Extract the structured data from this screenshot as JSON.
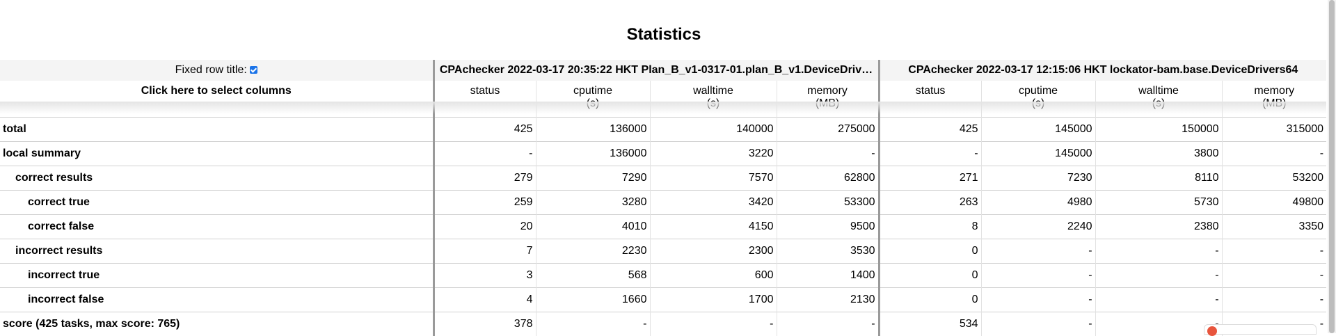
{
  "page": {
    "title": "Statistics"
  },
  "header": {
    "fixed_row_title_label": "Fixed row title:",
    "select_columns_label": "Click here to select columns",
    "runs": [
      "CPAchecker 2022-03-17 20:35:22 HKT Plan_B_v1-0317-01.plan_B_v1.DeviceDriv…",
      "CPAchecker 2022-03-17 12:15:06 HKT lockator-bam.base.DeviceDrivers64"
    ],
    "columns": [
      {
        "name": "status",
        "unit": ""
      },
      {
        "name": "cputime",
        "unit": "(s)"
      },
      {
        "name": "walltime",
        "unit": "(s)"
      },
      {
        "name": "memory",
        "unit": "(MB)"
      },
      {
        "name": "status",
        "unit": ""
      },
      {
        "name": "cputime",
        "unit": "(s)"
      },
      {
        "name": "walltime",
        "unit": "(s)"
      },
      {
        "name": "memory",
        "unit": "(MB)"
      }
    ]
  },
  "rows": [
    {
      "label": "total",
      "level": 0,
      "values": [
        "425",
        "136000",
        "140000",
        "275000",
        "425",
        "145000",
        "150000",
        "315000"
      ]
    },
    {
      "label": "local summary",
      "level": 0,
      "values": [
        "-",
        "136000",
        "3220",
        "-",
        "-",
        "145000",
        "3800",
        "-"
      ]
    },
    {
      "label": "correct results",
      "level": 1,
      "values": [
        "279",
        "7290",
        "7570",
        "62800",
        "271",
        "7230",
        "8110",
        "53200"
      ]
    },
    {
      "label": "correct true",
      "level": 2,
      "values": [
        "259",
        "3280",
        "3420",
        "53300",
        "263",
        "4980",
        "5730",
        "49800"
      ]
    },
    {
      "label": "correct false",
      "level": 2,
      "values": [
        "20",
        "4010",
        "4150",
        "9500",
        "8",
        "2240",
        "2380",
        "3350"
      ]
    },
    {
      "label": "incorrect results",
      "level": 1,
      "values": [
        "7",
        "2230",
        "2300",
        "3530",
        "0",
        "-",
        "-",
        "-"
      ]
    },
    {
      "label": "incorrect true",
      "level": 2,
      "values": [
        "3",
        "568",
        "600",
        "1400",
        "0",
        "-",
        "-",
        "-"
      ]
    },
    {
      "label": "incorrect false",
      "level": 2,
      "values": [
        "4",
        "1660",
        "1700",
        "2130",
        "0",
        "-",
        "-",
        "-"
      ]
    },
    {
      "label": "score (425 tasks, max score: 765)",
      "level": 0,
      "values": [
        "378",
        "-",
        "-",
        "-",
        "534",
        "-",
        "-",
        "-"
      ]
    }
  ]
}
